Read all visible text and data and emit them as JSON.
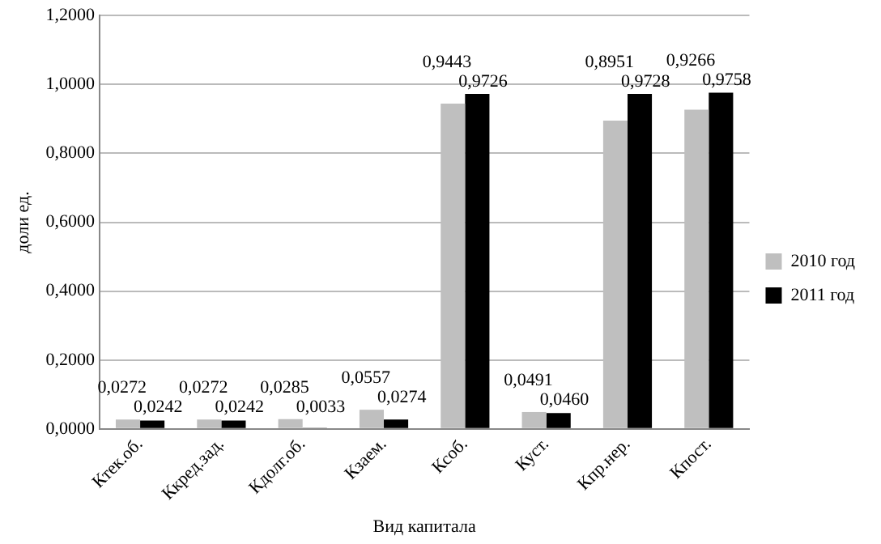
{
  "chart_data": {
    "type": "bar",
    "xlabel": "Вид капитала",
    "ylabel": "доли ед.",
    "categories": [
      "Ктек.об.",
      "Ккред.зад.",
      "Кдолг.об.",
      "Кзаем.",
      "Ксоб.",
      "Куст.",
      "Кпр.нер.",
      "Кпост."
    ],
    "series": [
      {
        "name": "2010 год",
        "color": "#bfbfbf",
        "values": [
          0.0272,
          0.0272,
          0.0285,
          0.0557,
          0.9443,
          0.0491,
          0.8951,
          0.9266
        ],
        "value_labels": [
          "0,0272",
          "0,0272",
          "0,0285",
          "0,0557",
          "0,9443",
          "0,0491",
          "0,8951",
          "0,9266"
        ]
      },
      {
        "name": "2011 год",
        "color": "#000000",
        "values": [
          0.0242,
          0.0242,
          0.0033,
          0.0274,
          0.9726,
          0.046,
          0.9728,
          0.9758
        ],
        "value_labels": [
          "0,0242",
          "0,0242",
          "0,0033",
          "0,0274",
          "0,9726",
          "0,0460",
          "0,9728",
          "0,9758"
        ]
      }
    ],
    "ylim": [
      0,
      1.2
    ],
    "yticks": [
      {
        "value": 0,
        "label": "0,0000"
      },
      {
        "value": 0.2,
        "label": "0,2000"
      },
      {
        "value": 0.4,
        "label": "0,4000"
      },
      {
        "value": 0.6,
        "label": "0,6000"
      },
      {
        "value": 0.8,
        "label": "0,8000"
      },
      {
        "value": 1,
        "label": "1,0000"
      },
      {
        "value": 1.2,
        "label": "1,2000"
      }
    ],
    "grid": "y",
    "legend": "right"
  }
}
